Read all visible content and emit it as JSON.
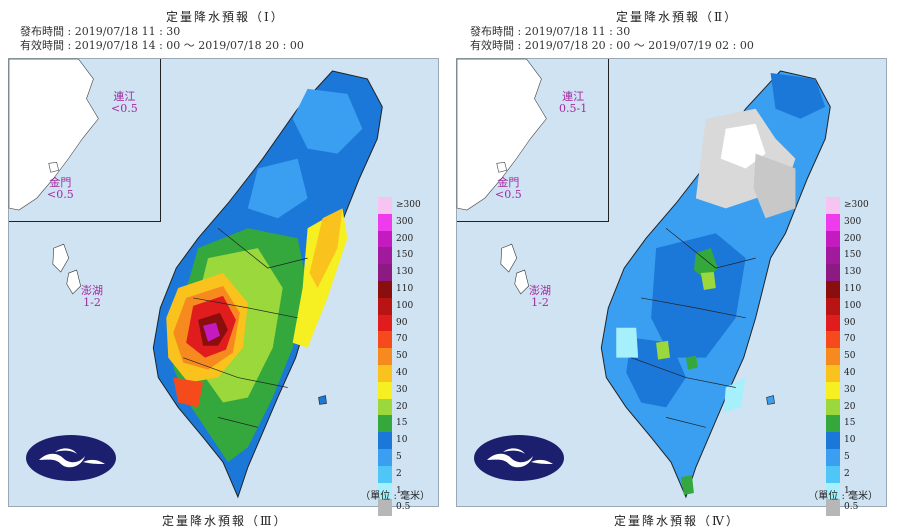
{
  "panels": [
    {
      "title": "定量降水預報（Ⅰ）",
      "issue_time": "發布時間 : 2019/07/18 11 : 30",
      "valid_time": "有效時間 : 2019/07/18 14 : 00 ～ 2019/07/18 20 : 00",
      "islands": {
        "lienchiang": "連江",
        "lienchiang_value": "<0.5",
        "kinmen": "金門",
        "kinmen_value": "<0.5",
        "penghu": "澎湖",
        "penghu_value": "1-2"
      },
      "footer_title": "定量降水預報（Ⅲ）"
    },
    {
      "title": "定量降水預報（Ⅱ）",
      "issue_time": "發布時間 : 2019/07/18 11 : 30",
      "valid_time": "有效時間 : 2019/07/18 20 : 00 ～ 2019/07/19 02 : 00",
      "islands": {
        "lienchiang": "連江",
        "lienchiang_value": "0.5-1",
        "kinmen": "金門",
        "kinmen_value": "<0.5",
        "penghu": "澎湖",
        "penghu_value": "1-2"
      },
      "footer_title": "定量降水預報（Ⅳ）"
    }
  ],
  "legend": {
    "unit": "（單位 : 毫米）",
    "levels": [
      {
        "label": "≥300",
        "color": "#f7c4f2"
      },
      {
        "label": "300",
        "color": "#ee3cec"
      },
      {
        "label": "200",
        "color": "#c41bc1"
      },
      {
        "label": "150",
        "color": "#a21a9c"
      },
      {
        "label": "130",
        "color": "#8c1a82"
      },
      {
        "label": "110",
        "color": "#8a0e0e"
      },
      {
        "label": "100",
        "color": "#b81414"
      },
      {
        "label": "90",
        "color": "#e01c1c"
      },
      {
        "label": "70",
        "color": "#f44a1c"
      },
      {
        "label": "50",
        "color": "#f78a1f"
      },
      {
        "label": "40",
        "color": "#f9c21d"
      },
      {
        "label": "30",
        "color": "#f6ef22"
      },
      {
        "label": "20",
        "color": "#9ad83c"
      },
      {
        "label": "15",
        "color": "#34a83c"
      },
      {
        "label": "10",
        "color": "#1c78d8"
      },
      {
        "label": "5",
        "color": "#3a9ff0"
      },
      {
        "label": "2",
        "color": "#4fc6f5"
      },
      {
        "label": "1",
        "color": "#a6f0fb"
      },
      {
        "label": "0.5",
        "color": "#b7b7b7"
      }
    ]
  },
  "icons": {
    "logo": "cwb-cloud-logo"
  }
}
